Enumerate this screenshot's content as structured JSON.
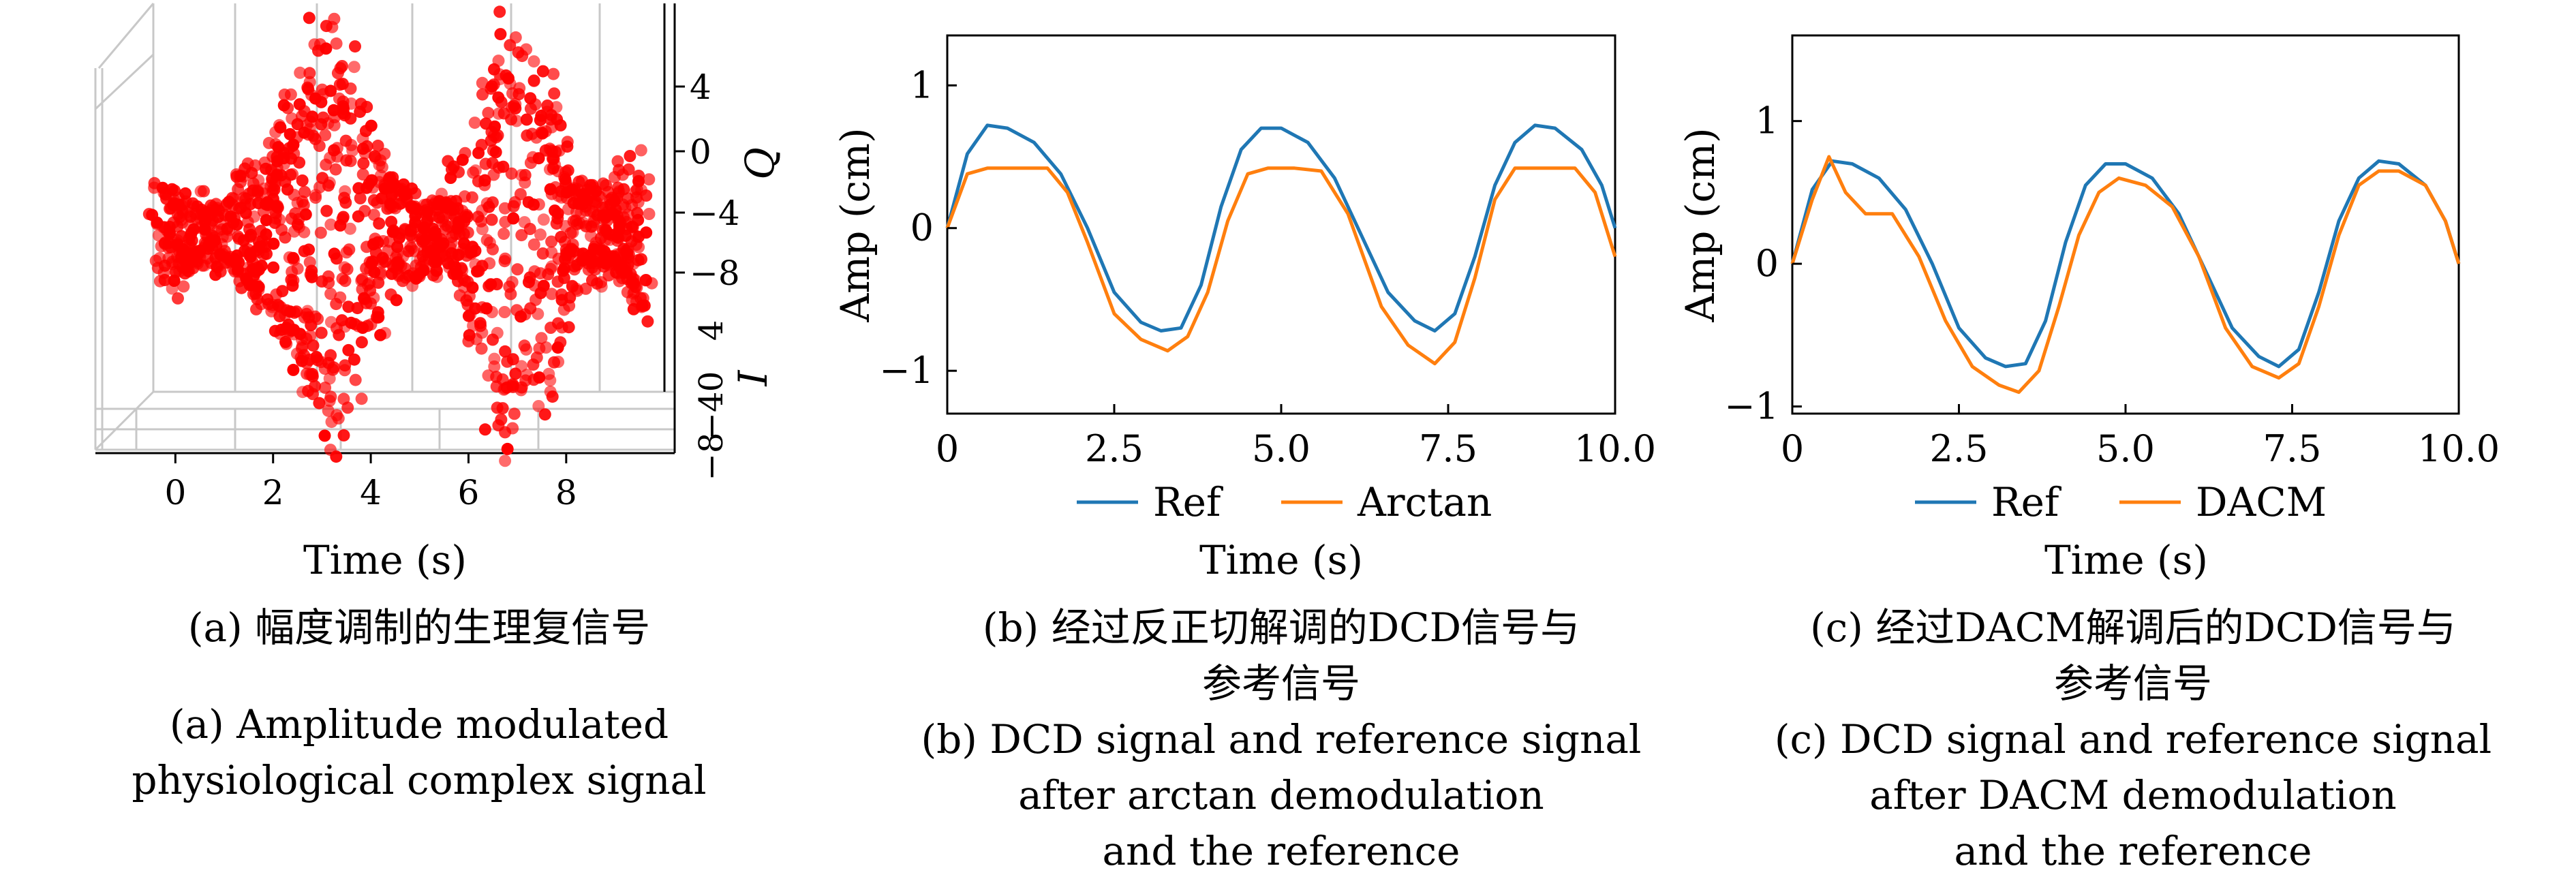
{
  "chart_data": [
    {
      "type": "scatter",
      "projection": "3d",
      "xlabel": "Time (s)",
      "ylabel": "I",
      "zlabel": "Q",
      "x_ticks": [
        "0",
        "2",
        "4",
        "6",
        "8"
      ],
      "z_ticks": [
        "4",
        "0",
        "−4",
        "−8"
      ],
      "y_ticks": [
        "4",
        "0",
        "−4",
        "−8"
      ],
      "xlim": [
        -0.8,
        10
      ],
      "zlim": [
        -11,
        6
      ],
      "series": [
        {
          "name": "",
          "color": "#ff0000",
          "envelope_t": [
            -0.3,
            0.2,
            1.0,
            1.8,
            2.5,
            3.0,
            3.5,
            4.2,
            5.0,
            5.6,
            6.0,
            6.5,
            7.0,
            7.6,
            8.2,
            9.0,
            9.6
          ],
          "envelope_q": [
            1.0,
            0.5,
            0.5,
            1.5,
            3.0,
            4.8,
            4.0,
            1.5,
            0.5,
            0.5,
            1.5,
            4.5,
            4.8,
            3.5,
            1.0,
            0.5,
            1.8
          ]
        }
      ]
    },
    {
      "type": "line",
      "xlabel": "Time (s)",
      "ylabel": "Amp (cm)",
      "xlim": [
        0,
        10
      ],
      "ylim": [
        -1.3,
        1.35
      ],
      "x_ticks": [
        "0",
        "2.5",
        "5.0",
        "7.5",
        "10.0"
      ],
      "x_tick_values": [
        0,
        2.5,
        5,
        7.5,
        10
      ],
      "y_ticks": [
        "−1",
        "0",
        "1"
      ],
      "y_tick_values": [
        -1,
        0,
        1
      ],
      "legend_position": "below",
      "series": [
        {
          "name": "Ref",
          "color": "#1f77b4",
          "x": [
            0,
            0.3,
            0.6,
            0.9,
            1.3,
            1.7,
            2.1,
            2.5,
            2.9,
            3.2,
            3.5,
            3.8,
            4.1,
            4.4,
            4.7,
            5.0,
            5.4,
            5.8,
            6.2,
            6.6,
            7.0,
            7.3,
            7.6,
            7.9,
            8.2,
            8.5,
            8.8,
            9.1,
            9.5,
            9.8,
            10.0
          ],
          "y": [
            0.0,
            0.52,
            0.72,
            0.7,
            0.6,
            0.38,
            0.0,
            -0.45,
            -0.66,
            -0.72,
            -0.7,
            -0.4,
            0.15,
            0.55,
            0.7,
            0.7,
            0.6,
            0.35,
            -0.05,
            -0.45,
            -0.65,
            -0.72,
            -0.6,
            -0.2,
            0.3,
            0.6,
            0.72,
            0.7,
            0.55,
            0.3,
            0.0
          ]
        },
        {
          "name": "Arctan",
          "color": "#ff7f0e",
          "x": [
            0,
            0.3,
            0.6,
            1.0,
            1.5,
            1.8,
            2.1,
            2.5,
            2.9,
            3.3,
            3.6,
            3.9,
            4.2,
            4.5,
            4.8,
            5.2,
            5.6,
            6.0,
            6.5,
            6.9,
            7.3,
            7.6,
            7.9,
            8.2,
            8.5,
            9.0,
            9.4,
            9.7,
            10.0
          ],
          "y": [
            0.0,
            0.38,
            0.42,
            0.42,
            0.42,
            0.25,
            -0.1,
            -0.6,
            -0.78,
            -0.86,
            -0.76,
            -0.45,
            0.05,
            0.38,
            0.42,
            0.42,
            0.4,
            0.1,
            -0.55,
            -0.82,
            -0.95,
            -0.8,
            -0.35,
            0.2,
            0.42,
            0.42,
            0.42,
            0.25,
            -0.2
          ]
        }
      ]
    },
    {
      "type": "line",
      "xlabel": "Time (s)",
      "ylabel": "Amp (cm)",
      "xlim": [
        0,
        10
      ],
      "ylim": [
        -1.05,
        1.6
      ],
      "x_ticks": [
        "0",
        "2.5",
        "5.0",
        "7.5",
        "10.0"
      ],
      "x_tick_values": [
        0,
        2.5,
        5,
        7.5,
        10
      ],
      "y_ticks": [
        "−1",
        "0",
        "1"
      ],
      "y_tick_values": [
        -1,
        0,
        1
      ],
      "legend_position": "below",
      "series": [
        {
          "name": "Ref",
          "color": "#1f77b4",
          "x": [
            0,
            0.3,
            0.6,
            0.9,
            1.3,
            1.7,
            2.1,
            2.5,
            2.9,
            3.2,
            3.5,
            3.8,
            4.1,
            4.4,
            4.7,
            5.0,
            5.4,
            5.8,
            6.2,
            6.6,
            7.0,
            7.3,
            7.6,
            7.9,
            8.2,
            8.5,
            8.8,
            9.1,
            9.5,
            9.8,
            10.0
          ],
          "y": [
            0.0,
            0.52,
            0.72,
            0.7,
            0.6,
            0.38,
            0.0,
            -0.45,
            -0.66,
            -0.72,
            -0.7,
            -0.4,
            0.15,
            0.55,
            0.7,
            0.7,
            0.6,
            0.35,
            -0.05,
            -0.45,
            -0.65,
            -0.72,
            -0.6,
            -0.2,
            0.3,
            0.6,
            0.72,
            0.7,
            0.55,
            0.3,
            0.0
          ]
        },
        {
          "name": "DACM",
          "color": "#ff7f0e",
          "x": [
            0,
            0.3,
            0.55,
            0.65,
            0.8,
            1.1,
            1.5,
            1.9,
            2.3,
            2.7,
            3.1,
            3.4,
            3.7,
            4.0,
            4.3,
            4.6,
            4.9,
            5.3,
            5.7,
            6.1,
            6.5,
            6.9,
            7.3,
            7.6,
            7.9,
            8.2,
            8.5,
            8.8,
            9.1,
            9.5,
            9.8,
            10.0
          ],
          "y": [
            0.0,
            0.45,
            0.75,
            0.65,
            0.5,
            0.35,
            0.35,
            0.05,
            -0.4,
            -0.72,
            -0.85,
            -0.9,
            -0.75,
            -0.3,
            0.2,
            0.5,
            0.6,
            0.55,
            0.4,
            0.05,
            -0.45,
            -0.72,
            -0.8,
            -0.7,
            -0.3,
            0.2,
            0.55,
            0.65,
            0.65,
            0.55,
            0.3,
            0.0
          ]
        }
      ]
    }
  ],
  "captions": [
    {
      "cn": "(a) 幅度调制的生理复信号",
      "en": [
        "(a) Amplitude modulated",
        "physiological complex signal"
      ]
    },
    {
      "cn": [
        "(b) 经过反正切解调的DCD信号与",
        "参考信号"
      ],
      "en": [
        "(b) DCD signal and reference signal",
        "after arctan demodulation",
        "and the reference"
      ]
    },
    {
      "cn": [
        "(c) 经过DACM解调后的DCD信号与",
        "参考信号"
      ],
      "en": [
        "(c) DCD signal and reference signal",
        "after DACM demodulation",
        "and the reference"
      ]
    }
  ]
}
